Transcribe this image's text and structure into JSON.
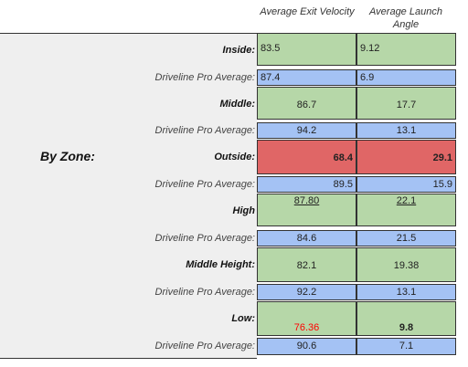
{
  "headers": {
    "exit_velocity": "Average Exit Velocity",
    "launch_angle": "Average Launch Angle"
  },
  "group_label": "By Zone:",
  "rows": [
    {
      "label": "Inside:",
      "ev": "83.5",
      "la": "9.12"
    },
    {
      "label": "Driveline Pro Average:",
      "ev": "87.4",
      "la": "6.9"
    },
    {
      "label": "Middle:",
      "ev": "86.7",
      "la": "17.7"
    },
    {
      "label": "Driveline Pro Average:",
      "ev": "94.2",
      "la": "13.1"
    },
    {
      "label": "Outside:",
      "ev": "68.4",
      "la": "29.1"
    },
    {
      "label": "Driveline Pro Average:",
      "ev": "89.5",
      "la": "15.9"
    },
    {
      "label": "High",
      "ev": "87.80",
      "la": "22.1"
    },
    {
      "label": "Driveline Pro Average:",
      "ev": "84.6",
      "la": "21.5"
    },
    {
      "label": "Middle Height:",
      "ev": "82.1",
      "la": "19.38"
    },
    {
      "label": "Driveline Pro Average:",
      "ev": "92.2",
      "la": "13.1"
    },
    {
      "label": "Low:",
      "ev": "76.36",
      "la": "9.8"
    },
    {
      "label": "Driveline Pro Average:",
      "ev": "90.6",
      "la": "7.1"
    }
  ],
  "colors": {
    "green": "#b6d7a8",
    "blue": "#a4c2f4",
    "red": "#e06666",
    "red_text": "#ff0000"
  }
}
